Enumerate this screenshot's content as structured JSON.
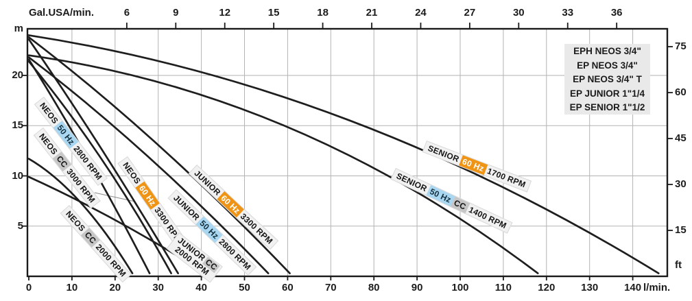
{
  "legend": {
    "items": [
      "EPH NEOS 3/4\"",
      "EP NEOS 3/4\"",
      "EP NEOS 3/4\" T",
      "EP JUNIOR 1\"1/4",
      "EP SENIOR 1\"1/2"
    ]
  },
  "curve_labels": [
    {
      "name": "NEOS",
      "freq": "50 Hz",
      "rpm": "2800 RPM"
    },
    {
      "name": "NEOS",
      "cc": "CC",
      "rpm": "3000 RPM"
    },
    {
      "name": "NEOS",
      "freq": "60 Hz",
      "rpm": "3300 RPM"
    },
    {
      "name": "NEOS",
      "cc": "CC",
      "rpm": "2000 RPM"
    },
    {
      "name": "JUNIOR",
      "freq": "60 Hz",
      "rpm": "3300 RPM"
    },
    {
      "name": "JUNIOR",
      "freq": "50 Hz",
      "rpm": "2800 RPM"
    },
    {
      "name": "JUNIOR",
      "cc": "CC",
      "rpm": "2000 RPM"
    },
    {
      "name": "SENIOR",
      "freq": "60 Hz",
      "rpm": "1700 RPM"
    },
    {
      "name": "SENIOR",
      "freq": "50 Hz",
      "cc": "CC",
      "rpm": "1400 RPM"
    }
  ],
  "colors": {
    "hz50_badge": "#a9d6f0",
    "hz60_badge": "#ef9414",
    "cc_badge": "#c6c6c6",
    "label_background": "#f1f1f1",
    "legend_background": "#e9e9e9",
    "curve": "#1e1e1e",
    "grid": "#b2b2b2"
  },
  "chart_data": {
    "type": "line",
    "title": "",
    "x_axis_bottom": {
      "label": "l/min.",
      "ticks": [
        0,
        10,
        20,
        30,
        40,
        50,
        60,
        70,
        80,
        90,
        100,
        110,
        120,
        130,
        140
      ],
      "range": [
        0,
        148
      ]
    },
    "x_axis_top": {
      "label": "Gal.USA/min.",
      "ticks": [
        6,
        9,
        12,
        15,
        18,
        21,
        24,
        27,
        30,
        33,
        36
      ],
      "liters_per_gallon": 3.78541
    },
    "y_axis_left": {
      "label": "m",
      "ticks": [
        5,
        10,
        15,
        20
      ],
      "range": [
        0,
        24.6
      ]
    },
    "y_axis_right": {
      "label": "ft",
      "ticks": [
        15,
        30,
        45,
        60,
        75
      ],
      "meters_per_foot": 0.3048
    },
    "grid": true,
    "legend_position": "top-right",
    "series": [
      {
        "id": "neos-50hz-2800",
        "name": "NEOS 50 Hz 2800 RPM",
        "shutoff_head_m": 21.6,
        "max_flow_l_min": 28,
        "bezier": [
          [
            0,
            21.6
          ],
          [
            14,
            12
          ],
          [
            28,
            0.3
          ]
        ]
      },
      {
        "id": "neos-cc-3000",
        "name": "NEOS CC 3000 RPM",
        "shutoff_head_m": 21.4,
        "max_flow_l_min": 33,
        "bezier": [
          [
            0,
            21.4
          ],
          [
            18,
            12
          ],
          [
            33,
            0.3
          ]
        ]
      },
      {
        "id": "neos-60hz-3300",
        "name": "NEOS 60 Hz 3300 RPM",
        "shutoff_head_m": 23.6,
        "max_flow_l_min": 34.6,
        "bezier": [
          [
            0,
            23.6
          ],
          [
            17,
            13
          ],
          [
            34.6,
            0.3
          ]
        ]
      },
      {
        "id": "neos-cc-2000",
        "name": "NEOS CC 2000 RPM",
        "shutoff_head_m": 11.7,
        "max_flow_l_min": 24,
        "bezier": [
          [
            0,
            11.7
          ],
          [
            12,
            8.7
          ],
          [
            24,
            0.3
          ]
        ]
      },
      {
        "id": "junior-60hz-3300",
        "name": "JUNIOR 60 Hz 3300 RPM",
        "shutoff_head_m": 23.8,
        "max_flow_l_min": 60.5,
        "bezier": [
          [
            0,
            23.8
          ],
          [
            30,
            14
          ],
          [
            60.5,
            0.3
          ]
        ]
      },
      {
        "id": "junior-50hz-2800",
        "name": "JUNIOR 50 Hz 2800 RPM",
        "shutoff_head_m": 21.8,
        "max_flow_l_min": 55.5,
        "bezier": [
          [
            0,
            21.8
          ],
          [
            27,
            13
          ],
          [
            55.5,
            0.3
          ]
        ]
      },
      {
        "id": "junior-cc-2000",
        "name": "JUNIOR CC 2000 RPM",
        "shutoff_head_m": 9.9,
        "max_flow_l_min": 41,
        "bezier": [
          [
            0,
            9.9
          ],
          [
            20,
            6
          ],
          [
            41,
            0.3
          ]
        ]
      },
      {
        "id": "senior-60hz-1700",
        "name": "SENIOR 60 Hz 1700 RPM",
        "shutoff_head_m": 24.0,
        "max_flow_l_min": 146,
        "bezier": [
          [
            0,
            24.0
          ],
          [
            75,
            19
          ],
          [
            146,
            0.3
          ]
        ]
      },
      {
        "id": "senior-50hz-cc-1400",
        "name": "SENIOR 50 Hz CC 1400 RPM",
        "shutoff_head_m": 22.0,
        "max_flow_l_min": 118,
        "bezier": [
          [
            0,
            22.0
          ],
          [
            63,
            18.2
          ],
          [
            118,
            0.3
          ]
        ]
      }
    ]
  }
}
